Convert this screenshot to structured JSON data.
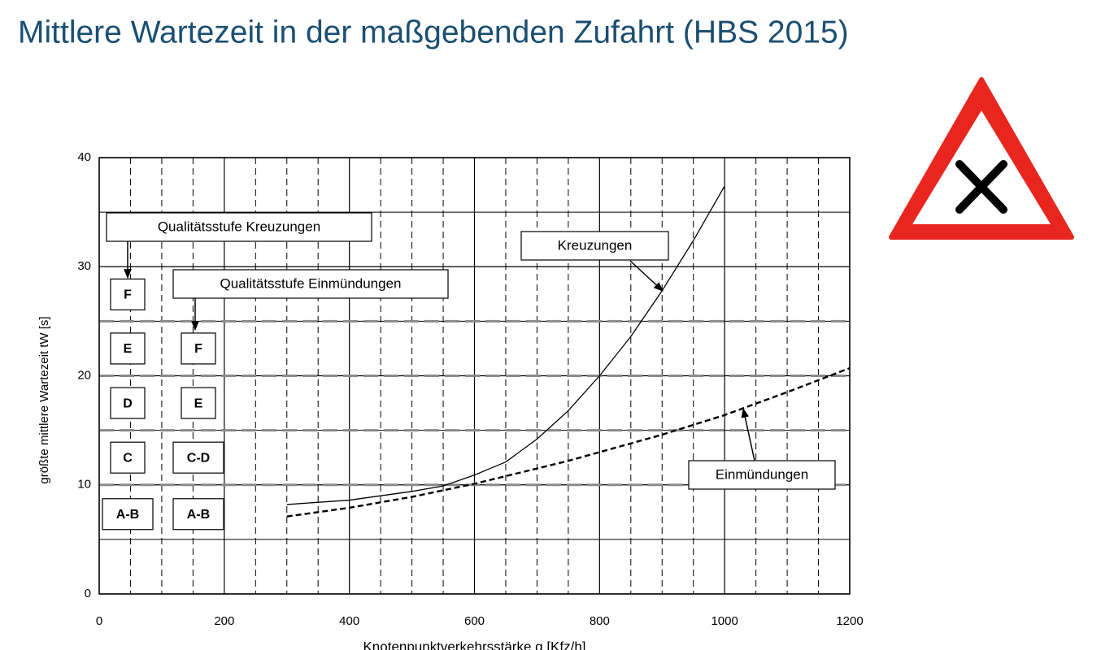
{
  "title": "Mittlere Wartezeit in der maßgebenden Zufahrt (HBS 2015)",
  "chart_data": {
    "type": "line",
    "x_label": "Knotenpunktverkehrsstärke q [Kfz/h]",
    "y_label": "größte mittlere Wartezeit tW [s]",
    "xlim": [
      0,
      1200
    ],
    "xticks": [
      0,
      200,
      400,
      600,
      800,
      1000,
      1200
    ],
    "ylim": [
      0,
      40
    ],
    "yticks": [
      0,
      10,
      20,
      30,
      40
    ],
    "grid": true,
    "thresholds": [
      10,
      15,
      20,
      25
    ],
    "x": [
      300,
      400,
      500,
      550,
      600,
      650,
      700,
      750,
      800,
      850,
      900,
      950,
      1000,
      1100,
      1200
    ],
    "series": [
      {
        "name": "Kreuzungen",
        "color": "#000000",
        "dash": false,
        "values": [
          8.2,
          8.6,
          9.4,
          9.9,
          10.9,
          12.1,
          14.2,
          16.8,
          20,
          23.6,
          27.8,
          32.4,
          37.4,
          null,
          null
        ]
      },
      {
        "name": "Einmündungen",
        "color": "#000000",
        "dash": true,
        "values": [
          7.1,
          7.9,
          8.9,
          9.5,
          10.1,
          10.8,
          11.5,
          12.2,
          13,
          13.8,
          14.6,
          15.5,
          16.4,
          18.5,
          20.7
        ]
      }
    ],
    "annotations": [
      "Qualitätsstufe Kreuzungen",
      "Qualitätsstufe Einmündungen"
    ],
    "levels_kreuzungen": [
      "F",
      "E",
      "D",
      "C",
      "A-B"
    ],
    "levels_einmuendungen": [
      "F",
      "E",
      "C-D",
      "A-B"
    ]
  }
}
